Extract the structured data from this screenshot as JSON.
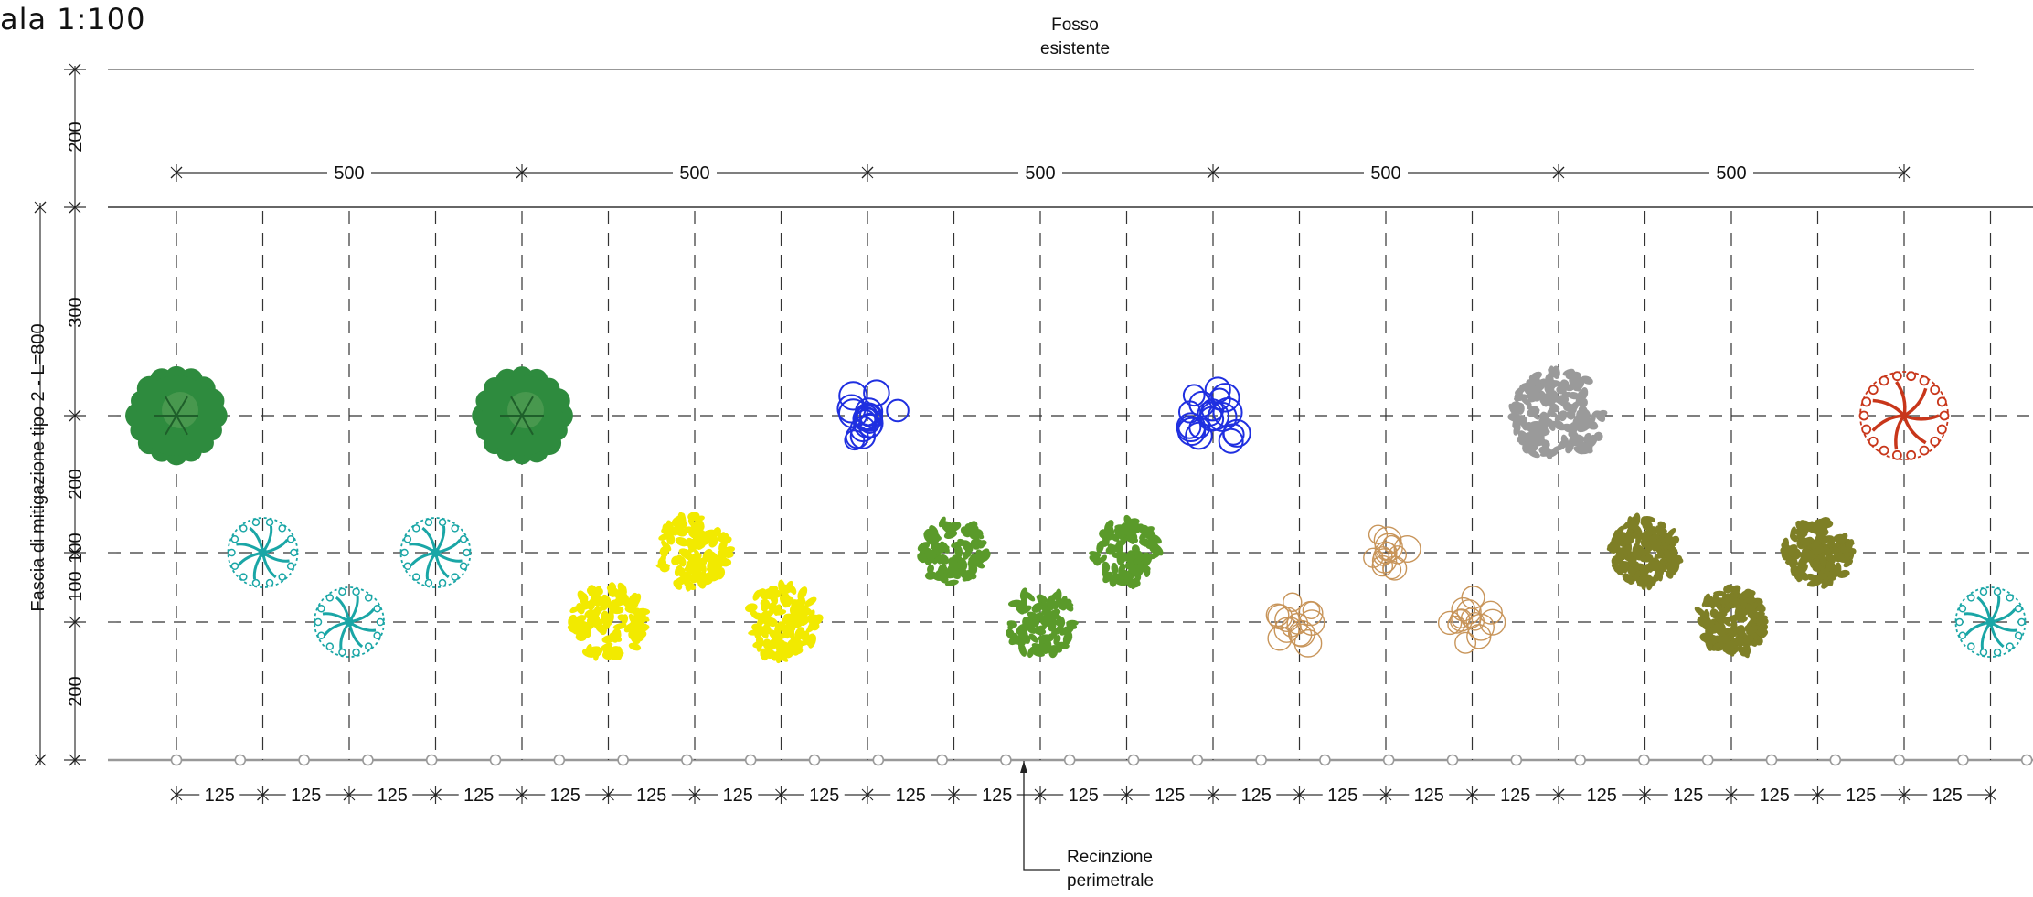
{
  "title": "ala 1:100",
  "top_label": {
    "line1": "Fosso",
    "line2": "esistente"
  },
  "bottom_label": {
    "line1": "Recinzione",
    "line2": "perimetrale"
  },
  "side_label": "Fascia di mitigazione tipo 2 - L=800",
  "top_dims": [
    "500",
    "500",
    "500",
    "500",
    "500"
  ],
  "left_dims": [
    "200",
    "300",
    "200",
    "100",
    "100",
    "200"
  ],
  "bottom_dim_value": "125",
  "bottom_dim_count": 21,
  "colors": {
    "dark_green": "#2e8b3e",
    "teal": "#1aa6a6",
    "yellow": "#f2ea00",
    "blue": "#1f2fe0",
    "olive_green": "#5a9a2a",
    "tan": "#c8955a",
    "gray": "#9a9a9a",
    "red": "#c8361a",
    "khaki": "#7e7f26",
    "line": "#222222",
    "fence": "#999999"
  },
  "trees": [
    {
      "kind": "dark-green-tree",
      "color": "dark_green"
    },
    {
      "kind": "teal-shrub",
      "color": "teal"
    },
    {
      "kind": "teal-shrub",
      "color": "teal"
    },
    {
      "kind": "teal-shrub",
      "color": "teal"
    },
    {
      "kind": "dark-green-tree",
      "color": "dark_green"
    },
    {
      "kind": "yellow-shrub",
      "color": "yellow"
    },
    {
      "kind": "yellow-shrub",
      "color": "yellow"
    },
    {
      "kind": "yellow-shrub",
      "color": "yellow"
    },
    {
      "kind": "blue-tree",
      "color": "blue"
    },
    {
      "kind": "green-shrub",
      "color": "olive_green"
    },
    {
      "kind": "green-shrub",
      "color": "olive_green"
    },
    {
      "kind": "green-shrub",
      "color": "olive_green"
    },
    {
      "kind": "blue-tree",
      "color": "blue"
    },
    {
      "kind": "tan-shrub",
      "color": "tan"
    },
    {
      "kind": "tan-shrub",
      "color": "tan"
    },
    {
      "kind": "tan-shrub",
      "color": "tan"
    },
    {
      "kind": "gray-tree",
      "color": "gray"
    },
    {
      "kind": "khaki-shrub",
      "color": "khaki"
    },
    {
      "kind": "khaki-shrub",
      "color": "khaki"
    },
    {
      "kind": "khaki-shrub",
      "color": "khaki"
    },
    {
      "kind": "red-tree",
      "color": "red"
    },
    {
      "kind": "teal-shrub",
      "color": "teal"
    }
  ]
}
